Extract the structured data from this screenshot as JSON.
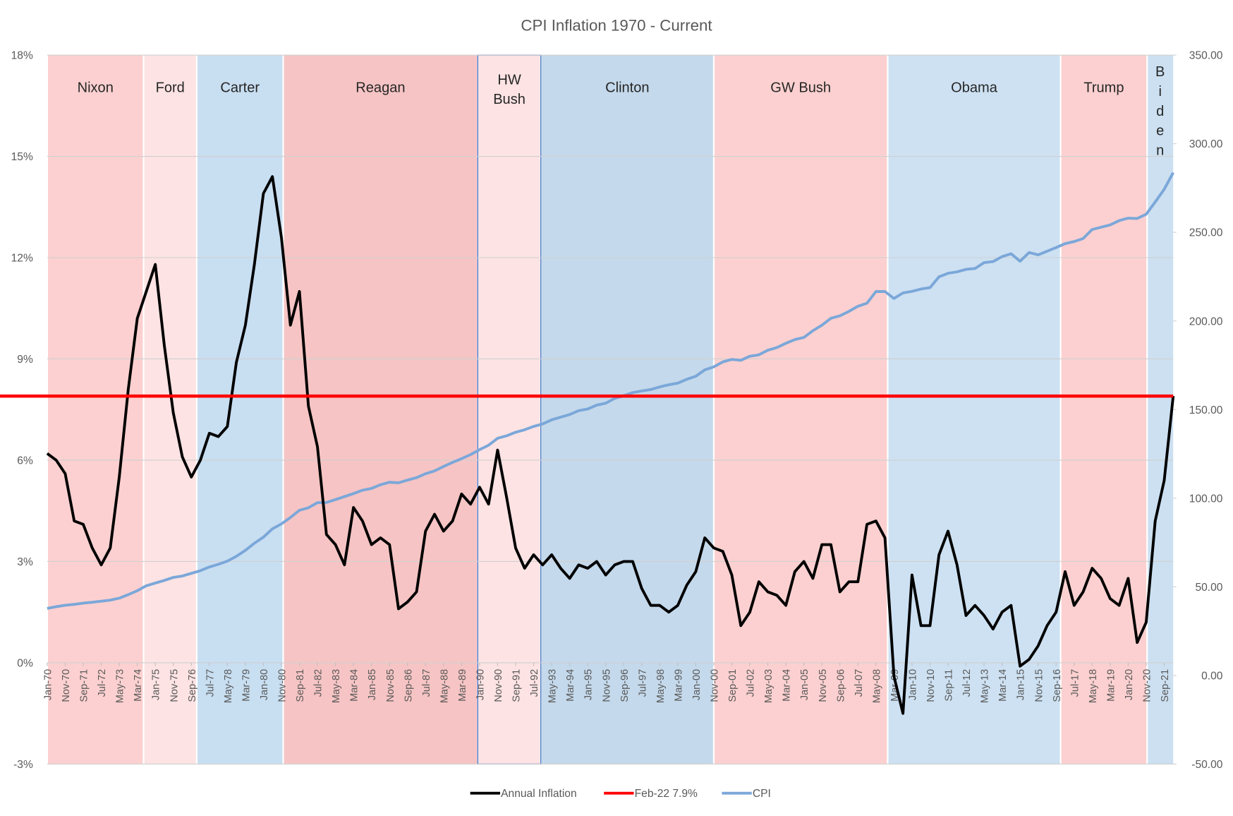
{
  "chart_data": {
    "type": "line",
    "title": "CPI Inflation 1970 - Current",
    "categories": [
      "Jan-70",
      null,
      "Nov-70",
      null,
      "Sep-71",
      null,
      "Jul-72",
      null,
      "May-73",
      null,
      "Mar-74",
      null,
      "Jan-75",
      null,
      "Nov-75",
      null,
      "Sep-76",
      null,
      "Jul-77",
      null,
      "May-78",
      null,
      "Mar-79",
      null,
      "Jan-80",
      null,
      "Nov-80",
      null,
      "Sep-81",
      null,
      "Jul-82",
      null,
      "May-83",
      null,
      "Mar-84",
      null,
      "Jan-85",
      null,
      "Nov-85",
      null,
      "Sep-86",
      null,
      "Jul-87",
      null,
      "May-88",
      null,
      "Mar-89",
      null,
      "Jan-90",
      null,
      "Nov-90",
      null,
      "Sep-91",
      null,
      "Jul-92",
      null,
      "May-93",
      null,
      "Mar-94",
      null,
      "Jan-95",
      null,
      "Nov-95",
      null,
      "Sep-96",
      null,
      "Jul-97",
      null,
      "May-98",
      null,
      "Mar-99",
      null,
      "Jan-00",
      null,
      "Nov-00",
      null,
      "Sep-01",
      null,
      "Jul-02",
      null,
      "May-03",
      null,
      "Mar-04",
      null,
      "Jan-05",
      null,
      "Nov-05",
      null,
      "Sep-06",
      null,
      "Jul-07",
      null,
      "May-08",
      null,
      "Mar-09",
      null,
      "Jan-10",
      null,
      "Nov-10",
      null,
      "Sep-11",
      null,
      "Jul-12",
      null,
      "May-13",
      null,
      "Mar-14",
      null,
      "Jan-15",
      null,
      "Nov-15",
      null,
      "Sep-16",
      null,
      "Jul-17",
      null,
      "May-18",
      null,
      "Mar-19",
      null,
      "Jan-20",
      null,
      "Nov-20",
      null,
      "Sep-21",
      null
    ],
    "series": [
      {
        "name": "Annual Inflation",
        "color": "#000000",
        "values": [
          6.2,
          6.0,
          5.6,
          4.2,
          4.1,
          3.4,
          2.9,
          3.4,
          5.5,
          8.1,
          10.2,
          11.0,
          11.8,
          9.4,
          7.4,
          6.1,
          5.5,
          6.0,
          6.8,
          6.7,
          7.0,
          8.9,
          10.0,
          11.8,
          13.9,
          14.4,
          12.6,
          10.0,
          11.0,
          7.6,
          6.4,
          3.8,
          3.5,
          2.9,
          4.6,
          4.2,
          3.5,
          3.7,
          3.5,
          1.6,
          1.8,
          2.1,
          3.9,
          4.4,
          3.9,
          4.2,
          5.0,
          4.7,
          5.2,
          4.7,
          6.3,
          4.9,
          3.4,
          2.8,
          3.2,
          2.9,
          3.2,
          2.8,
          2.5,
          2.9,
          2.8,
          3.0,
          2.6,
          2.9,
          3.0,
          3.0,
          2.2,
          1.7,
          1.7,
          1.5,
          1.7,
          2.3,
          2.7,
          3.7,
          3.4,
          3.3,
          2.6,
          1.1,
          1.5,
          2.4,
          2.1,
          2.0,
          1.7,
          2.7,
          3.0,
          2.5,
          3.5,
          3.5,
          2.1,
          2.4,
          2.4,
          4.1,
          4.2,
          3.7,
          -0.4,
          -1.5,
          2.6,
          1.1,
          1.1,
          3.2,
          3.9,
          2.9,
          1.4,
          1.7,
          1.4,
          1.0,
          1.5,
          1.7,
          -0.1,
          0.1,
          0.5,
          1.1,
          1.5,
          2.7,
          1.7,
          2.1,
          2.8,
          2.5,
          1.9,
          1.7,
          2.5,
          0.6,
          1.2,
          4.2,
          5.4,
          7.9
        ]
      },
      {
        "name": "Feb-22 7.9%",
        "color": "#ff0000",
        "value": 7.9
      },
      {
        "name": "CPI",
        "color": "#7ba7d9",
        "axis": "y2",
        "values": [
          37.8,
          38.8,
          39.6,
          40.1,
          40.8,
          41.3,
          41.9,
          42.5,
          43.6,
          45.6,
          47.8,
          50.6,
          52.1,
          53.6,
          55.3,
          56.1,
          57.6,
          59.1,
          61.2,
          62.7,
          64.5,
          67.2,
          70.6,
          74.6,
          78.0,
          82.7,
          85.5,
          89.1,
          93.2,
          94.6,
          97.5,
          97.6,
          99.2,
          100.9,
          102.6,
          104.5,
          105.5,
          107.6,
          109.0,
          108.7,
          110.2,
          111.6,
          113.8,
          115.4,
          117.9,
          120.2,
          122.3,
          124.6,
          127.4,
          129.9,
          133.8,
          135.2,
          137.2,
          138.6,
          140.5,
          141.9,
          144.2,
          145.7,
          147.2,
          149.4,
          150.3,
          152.5,
          153.6,
          156.3,
          157.8,
          159.6,
          160.5,
          161.3,
          162.8,
          164.0,
          164.9,
          167.1,
          168.8,
          172.4,
          174.1,
          176.9,
          178.3,
          177.8,
          180.1,
          180.9,
          183.5,
          185.0,
          187.4,
          189.5,
          190.7,
          194.5,
          197.6,
          201.5,
          202.9,
          205.4,
          208.3,
          210.0,
          216.6,
          216.6,
          212.7,
          215.8,
          216.7,
          218.0,
          218.8,
          224.9,
          226.9,
          227.7,
          229.1,
          229.6,
          232.9,
          233.5,
          236.3,
          237.9,
          233.7,
          238.6,
          237.3,
          239.3,
          241.4,
          243.6,
          244.8,
          246.5,
          251.6,
          252.9,
          254.2,
          256.6,
          258.0,
          257.8,
          260.2,
          267.1,
          274.3,
          283.7
        ]
      }
    ],
    "regions": [
      {
        "label": "Nixon",
        "start": 0,
        "end": 10.7,
        "color": "#fcd0d0"
      },
      {
        "label": "Ford",
        "start": 10.7,
        "end": 16.6,
        "color": "#fde3e3"
      },
      {
        "label": "Carter",
        "start": 16.6,
        "end": 26.2,
        "color": "#c8def1"
      },
      {
        "label": "Reagan",
        "start": 26.2,
        "end": 47.8,
        "color": "#f6c4c4"
      },
      {
        "label": "HW Bush",
        "start": 47.8,
        "end": 54.8,
        "color": "#fde3e3",
        "border": "#4472c4"
      },
      {
        "label": "Clinton",
        "start": 54.8,
        "end": 74.0,
        "color": "#c4d9eb"
      },
      {
        "label": "GW Bush",
        "start": 74.0,
        "end": 93.3,
        "color": "#fcd0d0"
      },
      {
        "label": "Obama",
        "start": 93.3,
        "end": 112.5,
        "color": "#cde1f2"
      },
      {
        "label": "Trump",
        "start": 112.5,
        "end": 122.1,
        "color": "#fcd0d0"
      },
      {
        "label": "Biden",
        "start": 122.1,
        "end": 125,
        "color": "#cce0f1"
      }
    ],
    "xlim": [
      0,
      125
    ],
    "ylim": [
      -3,
      18
    ],
    "yticks": [
      {
        "value": -3,
        "label": "-3%"
      },
      {
        "value": 0,
        "label": "0%"
      },
      {
        "value": 3,
        "label": "3%"
      },
      {
        "value": 6,
        "label": "6%"
      },
      {
        "value": 9,
        "label": "9%"
      },
      {
        "value": 12,
        "label": "12%"
      },
      {
        "value": 15,
        "label": "15%"
      },
      {
        "value": 18,
        "label": "18%"
      }
    ],
    "y2lim": [
      -50,
      350
    ],
    "y2ticks": [
      {
        "value": -50,
        "label": "-50.00"
      },
      {
        "value": 0,
        "label": "0.00"
      },
      {
        "value": 50,
        "label": "50.00"
      },
      {
        "value": 100,
        "label": "100.00"
      },
      {
        "value": 150,
        "label": "150.00"
      },
      {
        "value": 200,
        "label": "200.00"
      },
      {
        "value": 250,
        "label": "250.00"
      },
      {
        "value": 300,
        "label": "300.00"
      },
      {
        "value": 350,
        "label": "350.00"
      }
    ],
    "grid": true,
    "legend": "bottom"
  }
}
